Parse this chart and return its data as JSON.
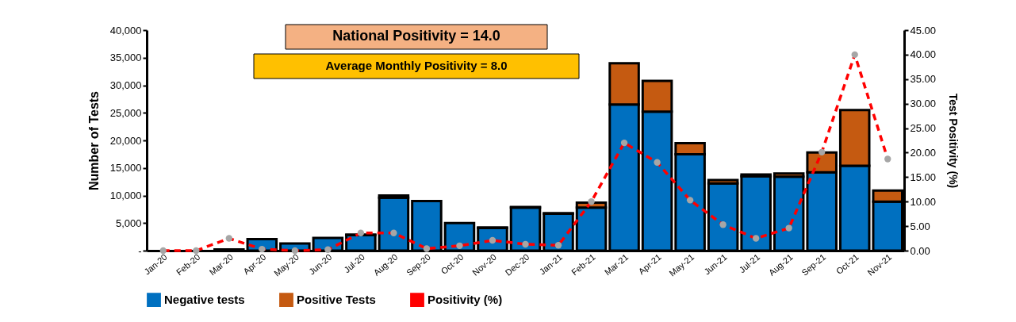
{
  "chart_data": {
    "type": "bar",
    "stacked": true,
    "ylabel": "Number of Tests",
    "y2label": "Test Positivity (%)",
    "annotations": [
      "National Positivity = 14.0",
      "Average Monthly Positivity = 8.0"
    ],
    "categories": [
      "Jan-20",
      "Feb-20",
      "Mar-20",
      "Apr-20",
      "May-20",
      "Jun-20",
      "Jul-20",
      "Aug-20",
      "Sep-20",
      "Oct-20",
      "Nov-20",
      "Dec-20",
      "Jan-21",
      "Feb-21",
      "Mar-21",
      "Apr-21",
      "May-21",
      "Jun-21",
      "Jul-21",
      "Aug-21",
      "Sep-21",
      "Oct-21",
      "Nov-21"
    ],
    "series": [
      {
        "name": "Negative tests",
        "color": "#0070c0",
        "values": [
          0,
          0,
          200,
          2100,
          1300,
          2300,
          2800,
          9600,
          9000,
          5000,
          4100,
          7800,
          6700,
          7800,
          26500,
          25200,
          17500,
          12200,
          13500,
          13400,
          14200,
          15400,
          8900
        ]
      },
      {
        "name": "Positive Tests",
        "color": "#c55a11",
        "values": [
          0,
          0,
          0,
          0,
          0,
          0,
          100,
          400,
          0,
          0,
          100,
          100,
          100,
          900,
          7500,
          5600,
          2000,
          600,
          300,
          600,
          3600,
          10100,
          2000
        ]
      },
      {
        "name": "Positivity (%)",
        "type": "line",
        "axis": "y2",
        "color": "#ff0000",
        "marker": "circle",
        "line_style": "dashed",
        "values": [
          0,
          0,
          2.5,
          0.3,
          0,
          0.2,
          3.6,
          3.6,
          0.4,
          1.0,
          2.1,
          1.3,
          1.1,
          10.0,
          22.0,
          18.0,
          10.3,
          5.3,
          2.5,
          4.6,
          20.1,
          40.0,
          18.7
        ]
      }
    ],
    "ylim": [
      0,
      40000
    ],
    "yticks": [
      {
        "value": 0,
        "label": "-"
      },
      {
        "value": 5000,
        "label": "5,000"
      },
      {
        "value": 10000,
        "label": "10,000"
      },
      {
        "value": 15000,
        "label": "15,000"
      },
      {
        "value": 20000,
        "label": "20,000"
      },
      {
        "value": 25000,
        "label": "25,000"
      },
      {
        "value": 30000,
        "label": "30,000"
      },
      {
        "value": 35000,
        "label": "35,000"
      },
      {
        "value": 40000,
        "label": "40,000"
      }
    ],
    "y2lim": [
      0,
      45
    ],
    "y2ticks": [
      {
        "value": 0,
        "label": "0.00"
      },
      {
        "value": 5,
        "label": "5.00"
      },
      {
        "value": 10,
        "label": "10.00"
      },
      {
        "value": 15,
        "label": "15.00"
      },
      {
        "value": 20,
        "label": "20.00"
      },
      {
        "value": 25,
        "label": "25.00"
      },
      {
        "value": 30,
        "label": "30.00"
      },
      {
        "value": 35,
        "label": "35.00"
      },
      {
        "value": 40,
        "label": "40.00"
      },
      {
        "value": 45,
        "label": "45.00"
      }
    ],
    "grid": false,
    "legend": "bottom"
  }
}
